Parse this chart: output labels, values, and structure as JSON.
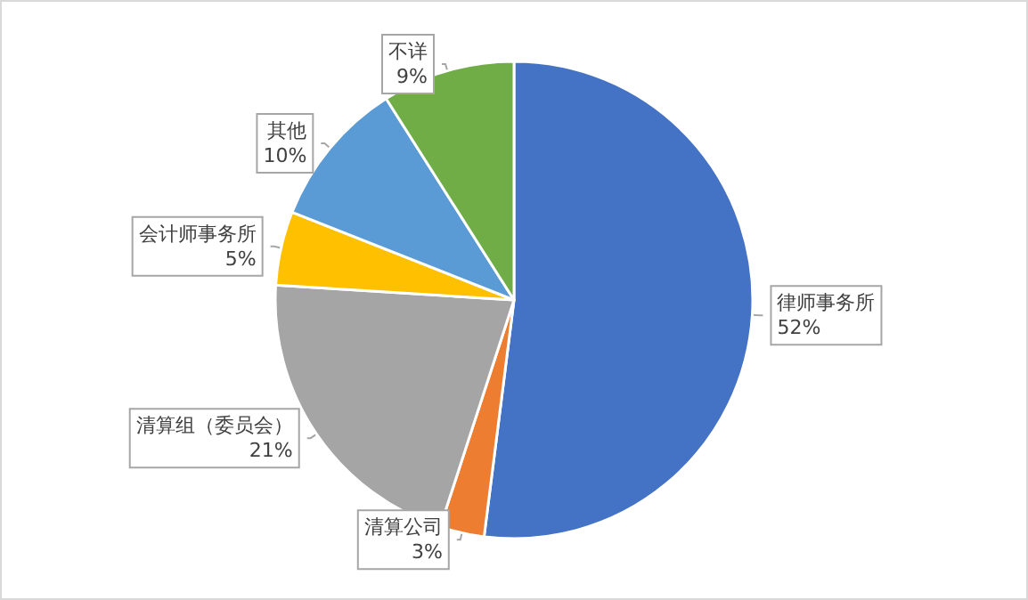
{
  "chart_data": {
    "type": "pie",
    "categories": [
      "律师事务所",
      "清算公司",
      "清算组（委员会）",
      "会计师事务所",
      "其他",
      "不详"
    ],
    "values": [
      52,
      3,
      21,
      5,
      10,
      9
    ],
    "colors": [
      "#4472c4",
      "#ed7d31",
      "#a5a5a5",
      "#ffc000",
      "#5b9bd5",
      "#70ad47"
    ],
    "value_labels": [
      "52%",
      "3%",
      "21%",
      "5%",
      "10%",
      "9%"
    ],
    "legend": false
  }
}
